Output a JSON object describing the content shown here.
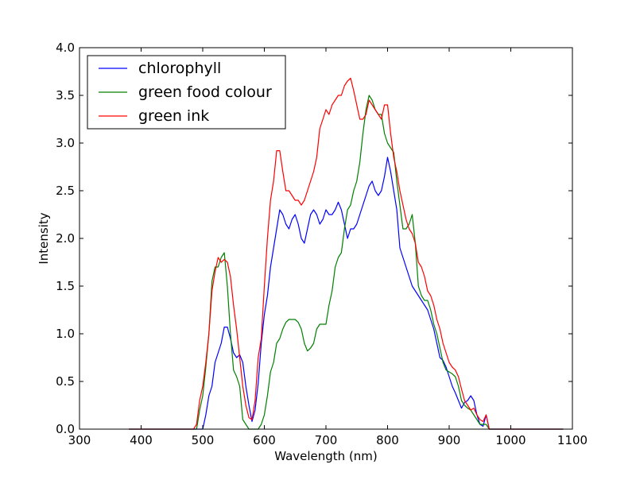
{
  "chart_data": {
    "type": "line",
    "xlabel": "Wavelength (nm)",
    "ylabel": "Intensity",
    "xlim": [
      300,
      1100
    ],
    "ylim": [
      0.0,
      4.0
    ],
    "xticks": [
      "300",
      "400",
      "500",
      "600",
      "700",
      "800",
      "900",
      "1000",
      "1100"
    ],
    "yticks": [
      "0.0",
      "0.5",
      "1.0",
      "1.5",
      "2.0",
      "2.5",
      "3.0",
      "3.5",
      "4.0"
    ],
    "grid": false,
    "legend_position": "top-left",
    "series": [
      {
        "name": "chlorophyll",
        "color": "#0000ff",
        "points": [
          [
            380,
            0.0
          ],
          [
            490,
            0.0
          ],
          [
            500,
            0.0
          ],
          [
            505,
            0.15
          ],
          [
            510,
            0.35
          ],
          [
            515,
            0.45
          ],
          [
            520,
            0.7
          ],
          [
            525,
            0.8
          ],
          [
            530,
            0.9
          ],
          [
            535,
            1.07
          ],
          [
            540,
            1.07
          ],
          [
            545,
            0.95
          ],
          [
            550,
            0.8
          ],
          [
            555,
            0.75
          ],
          [
            560,
            0.78
          ],
          [
            565,
            0.7
          ],
          [
            570,
            0.45
          ],
          [
            575,
            0.25
          ],
          [
            580,
            0.08
          ],
          [
            585,
            0.2
          ],
          [
            590,
            0.48
          ],
          [
            595,
            0.9
          ],
          [
            600,
            1.2
          ],
          [
            605,
            1.4
          ],
          [
            610,
            1.7
          ],
          [
            615,
            1.9
          ],
          [
            620,
            2.1
          ],
          [
            625,
            2.3
          ],
          [
            630,
            2.25
          ],
          [
            635,
            2.15
          ],
          [
            640,
            2.1
          ],
          [
            645,
            2.2
          ],
          [
            650,
            2.25
          ],
          [
            655,
            2.15
          ],
          [
            660,
            2.0
          ],
          [
            665,
            1.95
          ],
          [
            670,
            2.1
          ],
          [
            675,
            2.25
          ],
          [
            680,
            2.3
          ],
          [
            685,
            2.25
          ],
          [
            690,
            2.15
          ],
          [
            695,
            2.2
          ],
          [
            700,
            2.3
          ],
          [
            705,
            2.25
          ],
          [
            710,
            2.25
          ],
          [
            715,
            2.3
          ],
          [
            720,
            2.38
          ],
          [
            725,
            2.3
          ],
          [
            730,
            2.15
          ],
          [
            735,
            2.0
          ],
          [
            740,
            2.1
          ],
          [
            745,
            2.1
          ],
          [
            750,
            2.15
          ],
          [
            755,
            2.25
          ],
          [
            760,
            2.35
          ],
          [
            765,
            2.45
          ],
          [
            770,
            2.55
          ],
          [
            775,
            2.6
          ],
          [
            780,
            2.5
          ],
          [
            785,
            2.45
          ],
          [
            790,
            2.5
          ],
          [
            795,
            2.65
          ],
          [
            800,
            2.85
          ],
          [
            805,
            2.7
          ],
          [
            810,
            2.5
          ],
          [
            815,
            2.3
          ],
          [
            820,
            1.9
          ],
          [
            825,
            1.8
          ],
          [
            830,
            1.7
          ],
          [
            835,
            1.6
          ],
          [
            840,
            1.5
          ],
          [
            845,
            1.45
          ],
          [
            850,
            1.4
          ],
          [
            855,
            1.35
          ],
          [
            860,
            1.3
          ],
          [
            865,
            1.25
          ],
          [
            870,
            1.15
          ],
          [
            875,
            1.05
          ],
          [
            880,
            0.9
          ],
          [
            885,
            0.75
          ],
          [
            890,
            0.72
          ],
          [
            895,
            0.65
          ],
          [
            900,
            0.55
          ],
          [
            905,
            0.45
          ],
          [
            910,
            0.38
          ],
          [
            915,
            0.3
          ],
          [
            920,
            0.22
          ],
          [
            925,
            0.28
          ],
          [
            930,
            0.3
          ],
          [
            935,
            0.35
          ],
          [
            940,
            0.3
          ],
          [
            945,
            0.15
          ],
          [
            950,
            0.05
          ],
          [
            955,
            0.03
          ],
          [
            960,
            0.15
          ],
          [
            965,
            0.0
          ],
          [
            1085,
            0.0
          ]
        ]
      },
      {
        "name": "green food colour",
        "color": "#008000",
        "points": [
          [
            380,
            0.0
          ],
          [
            490,
            0.0
          ],
          [
            495,
            0.2
          ],
          [
            500,
            0.35
          ],
          [
            505,
            0.65
          ],
          [
            510,
            1.0
          ],
          [
            515,
            1.55
          ],
          [
            520,
            1.7
          ],
          [
            525,
            1.7
          ],
          [
            530,
            1.8
          ],
          [
            535,
            1.85
          ],
          [
            540,
            1.5
          ],
          [
            545,
            1.0
          ],
          [
            550,
            0.62
          ],
          [
            555,
            0.55
          ],
          [
            560,
            0.45
          ],
          [
            565,
            0.1
          ],
          [
            570,
            0.05
          ],
          [
            575,
            0.0
          ],
          [
            590,
            0.0
          ],
          [
            595,
            0.05
          ],
          [
            600,
            0.15
          ],
          [
            605,
            0.35
          ],
          [
            610,
            0.6
          ],
          [
            615,
            0.7
          ],
          [
            620,
            0.9
          ],
          [
            625,
            0.95
          ],
          [
            630,
            1.05
          ],
          [
            635,
            1.12
          ],
          [
            640,
            1.15
          ],
          [
            645,
            1.15
          ],
          [
            650,
            1.15
          ],
          [
            655,
            1.12
          ],
          [
            660,
            1.05
          ],
          [
            665,
            0.9
          ],
          [
            670,
            0.82
          ],
          [
            675,
            0.85
          ],
          [
            680,
            0.9
          ],
          [
            685,
            1.05
          ],
          [
            690,
            1.1
          ],
          [
            695,
            1.1
          ],
          [
            700,
            1.1
          ],
          [
            705,
            1.3
          ],
          [
            710,
            1.45
          ],
          [
            715,
            1.7
          ],
          [
            720,
            1.8
          ],
          [
            725,
            1.85
          ],
          [
            730,
            2.1
          ],
          [
            735,
            2.3
          ],
          [
            740,
            2.35
          ],
          [
            745,
            2.5
          ],
          [
            750,
            2.6
          ],
          [
            755,
            2.8
          ],
          [
            760,
            3.1
          ],
          [
            765,
            3.35
          ],
          [
            770,
            3.5
          ],
          [
            775,
            3.45
          ],
          [
            780,
            3.35
          ],
          [
            785,
            3.3
          ],
          [
            790,
            3.3
          ],
          [
            795,
            3.1
          ],
          [
            800,
            3.0
          ],
          [
            805,
            2.95
          ],
          [
            810,
            2.9
          ],
          [
            815,
            2.6
          ],
          [
            820,
            2.35
          ],
          [
            825,
            2.1
          ],
          [
            830,
            2.1
          ],
          [
            835,
            2.15
          ],
          [
            840,
            2.25
          ],
          [
            845,
            1.95
          ],
          [
            850,
            1.5
          ],
          [
            855,
            1.4
          ],
          [
            860,
            1.35
          ],
          [
            865,
            1.35
          ],
          [
            870,
            1.25
          ],
          [
            875,
            1.1
          ],
          [
            880,
            1.0
          ],
          [
            885,
            0.85
          ],
          [
            890,
            0.7
          ],
          [
            895,
            0.62
          ],
          [
            900,
            0.6
          ],
          [
            905,
            0.58
          ],
          [
            910,
            0.55
          ],
          [
            915,
            0.45
          ],
          [
            920,
            0.3
          ],
          [
            925,
            0.25
          ],
          [
            930,
            0.22
          ],
          [
            935,
            0.2
          ],
          [
            940,
            0.15
          ],
          [
            945,
            0.1
          ],
          [
            950,
            0.05
          ],
          [
            955,
            0.05
          ],
          [
            960,
            0.05
          ],
          [
            965,
            0.0
          ],
          [
            1085,
            0.0
          ]
        ]
      },
      {
        "name": "green ink",
        "color": "#ff0000",
        "points": [
          [
            380,
            0.0
          ],
          [
            485,
            0.0
          ],
          [
            490,
            0.05
          ],
          [
            495,
            0.3
          ],
          [
            500,
            0.45
          ],
          [
            505,
            0.7
          ],
          [
            510,
            1.0
          ],
          [
            515,
            1.45
          ],
          [
            520,
            1.65
          ],
          [
            525,
            1.8
          ],
          [
            530,
            1.75
          ],
          [
            535,
            1.78
          ],
          [
            540,
            1.75
          ],
          [
            545,
            1.6
          ],
          [
            550,
            1.3
          ],
          [
            555,
            1.05
          ],
          [
            560,
            0.75
          ],
          [
            565,
            0.45
          ],
          [
            570,
            0.25
          ],
          [
            575,
            0.12
          ],
          [
            580,
            0.1
          ],
          [
            585,
            0.3
          ],
          [
            590,
            0.75
          ],
          [
            595,
            0.95
          ],
          [
            600,
            1.5
          ],
          [
            605,
            2.0
          ],
          [
            610,
            2.4
          ],
          [
            615,
            2.6
          ],
          [
            620,
            2.92
          ],
          [
            625,
            2.92
          ],
          [
            630,
            2.7
          ],
          [
            635,
            2.5
          ],
          [
            640,
            2.5
          ],
          [
            645,
            2.45
          ],
          [
            650,
            2.4
          ],
          [
            655,
            2.4
          ],
          [
            660,
            2.35
          ],
          [
            665,
            2.4
          ],
          [
            670,
            2.5
          ],
          [
            675,
            2.6
          ],
          [
            680,
            2.7
          ],
          [
            685,
            2.85
          ],
          [
            690,
            3.15
          ],
          [
            695,
            3.25
          ],
          [
            700,
            3.35
          ],
          [
            705,
            3.3
          ],
          [
            710,
            3.4
          ],
          [
            715,
            3.45
          ],
          [
            720,
            3.5
          ],
          [
            725,
            3.5
          ],
          [
            730,
            3.6
          ],
          [
            735,
            3.65
          ],
          [
            740,
            3.68
          ],
          [
            745,
            3.55
          ],
          [
            750,
            3.4
          ],
          [
            755,
            3.25
          ],
          [
            760,
            3.25
          ],
          [
            765,
            3.3
          ],
          [
            770,
            3.45
          ],
          [
            775,
            3.4
          ],
          [
            780,
            3.35
          ],
          [
            785,
            3.3
          ],
          [
            790,
            3.25
          ],
          [
            795,
            3.4
          ],
          [
            800,
            3.4
          ],
          [
            805,
            3.1
          ],
          [
            810,
            2.85
          ],
          [
            815,
            2.7
          ],
          [
            820,
            2.5
          ],
          [
            825,
            2.35
          ],
          [
            830,
            2.2
          ],
          [
            835,
            2.1
          ],
          [
            840,
            2.05
          ],
          [
            845,
            1.95
          ],
          [
            850,
            1.75
          ],
          [
            855,
            1.7
          ],
          [
            860,
            1.6
          ],
          [
            865,
            1.45
          ],
          [
            870,
            1.4
          ],
          [
            875,
            1.3
          ],
          [
            880,
            1.15
          ],
          [
            885,
            1.05
          ],
          [
            890,
            0.9
          ],
          [
            895,
            0.8
          ],
          [
            900,
            0.7
          ],
          [
            905,
            0.65
          ],
          [
            910,
            0.62
          ],
          [
            915,
            0.55
          ],
          [
            920,
            0.42
          ],
          [
            925,
            0.3
          ],
          [
            930,
            0.25
          ],
          [
            935,
            0.2
          ],
          [
            940,
            0.22
          ],
          [
            945,
            0.15
          ],
          [
            950,
            0.1
          ],
          [
            955,
            0.08
          ],
          [
            960,
            0.15
          ],
          [
            965,
            0.0
          ],
          [
            1085,
            0.0
          ]
        ]
      }
    ]
  }
}
